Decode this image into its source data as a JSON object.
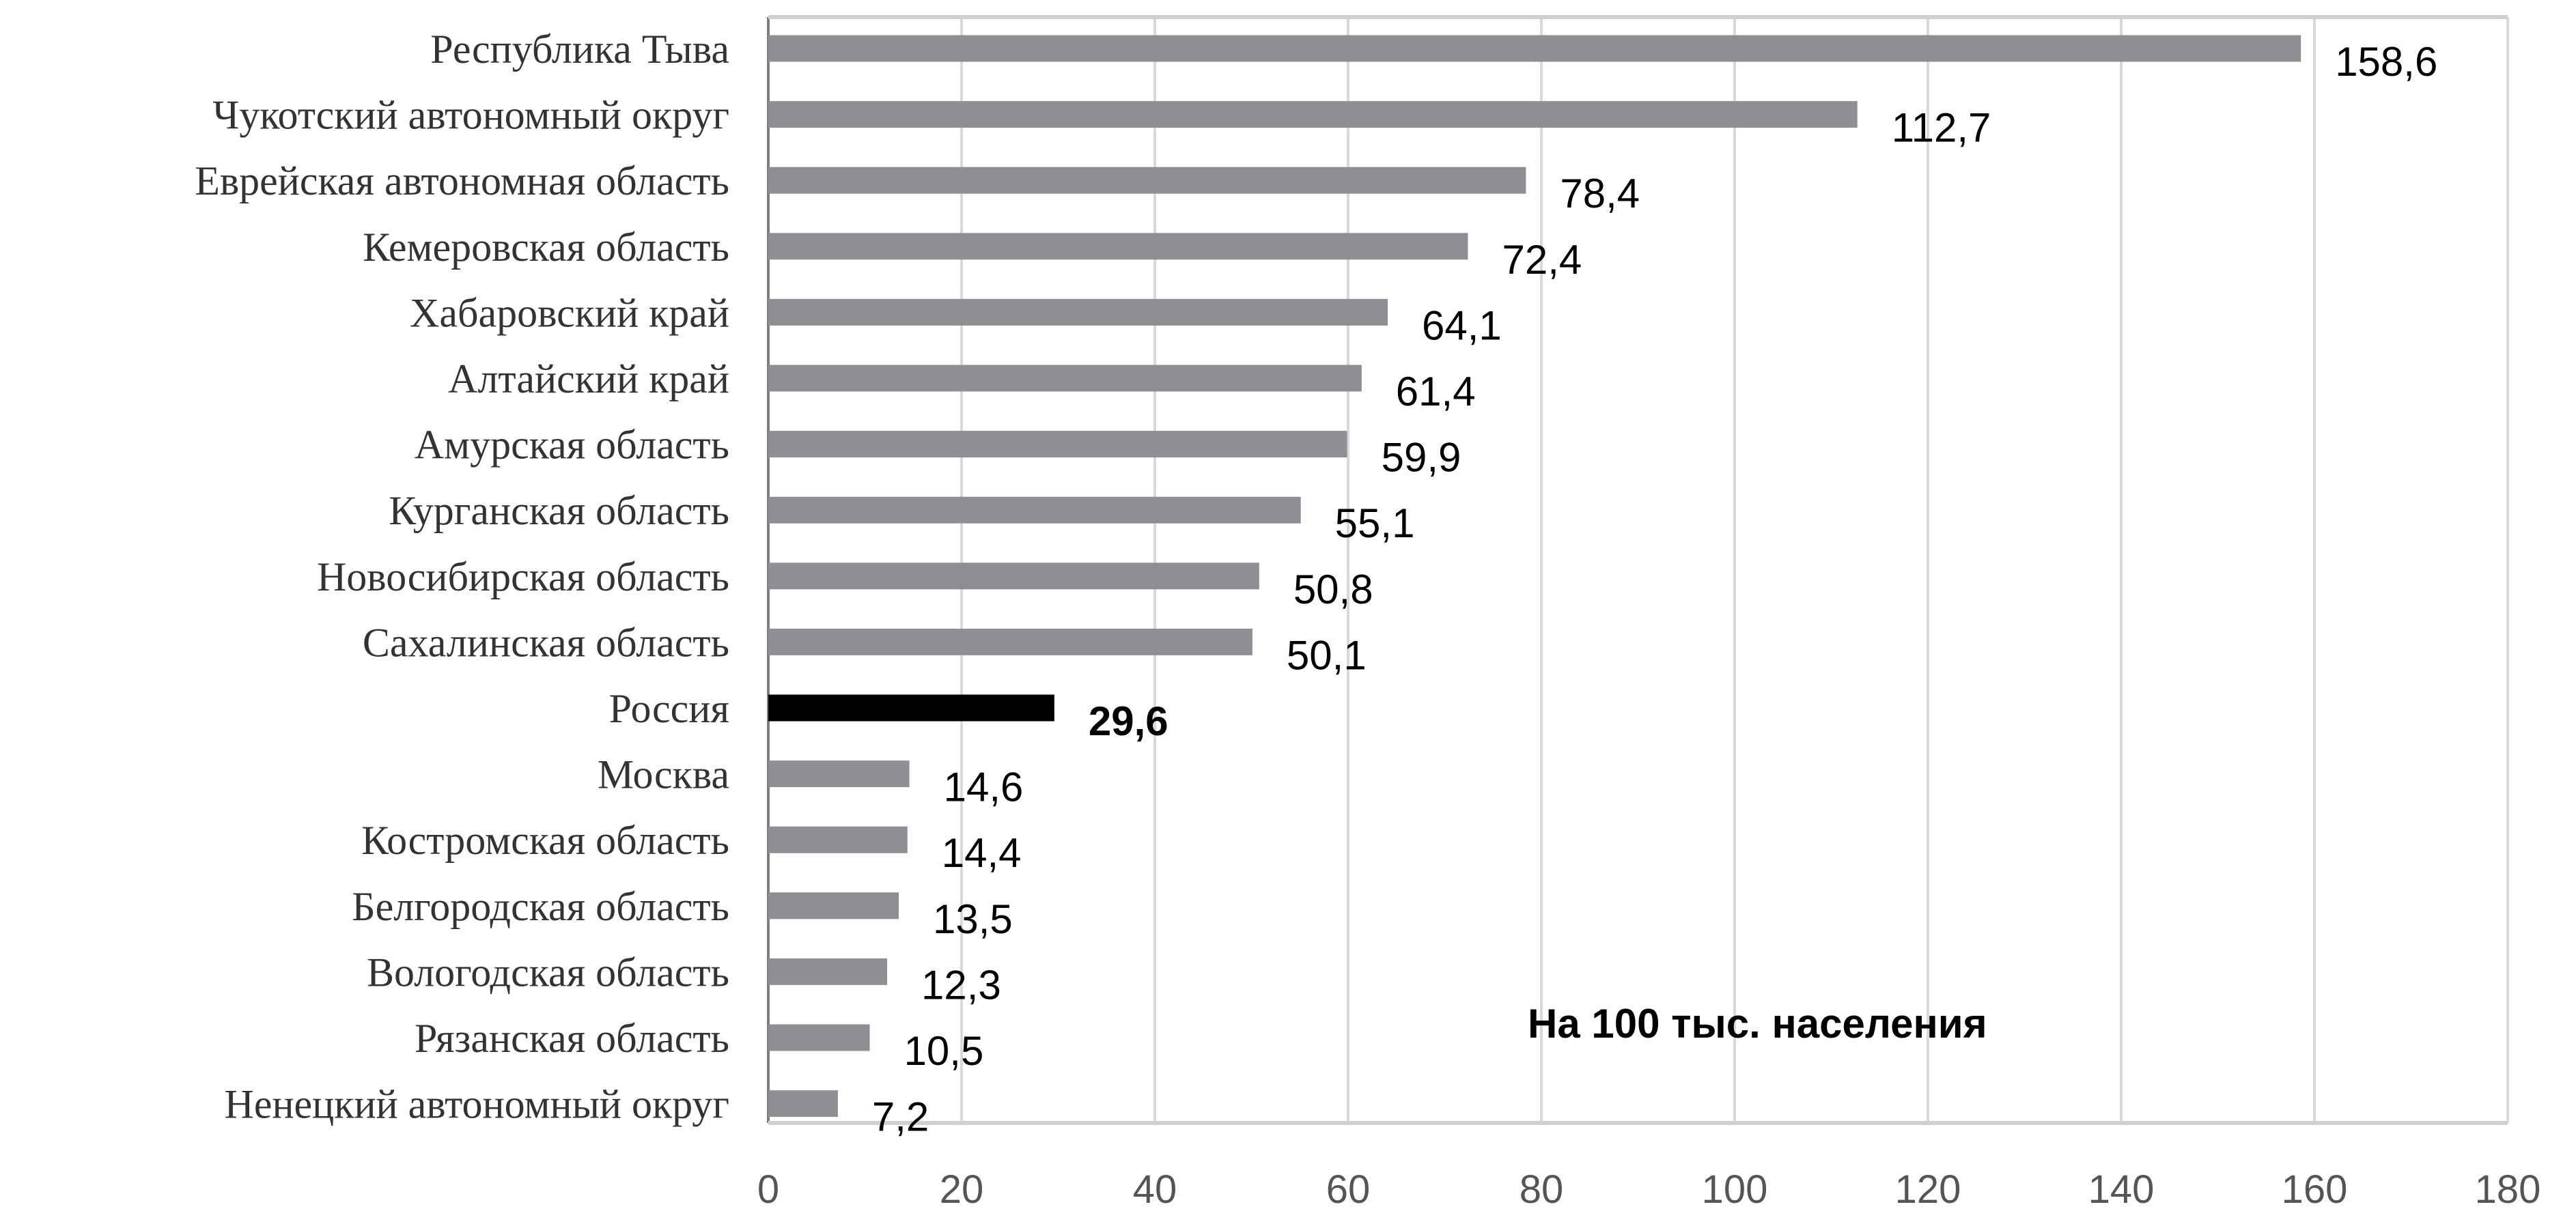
{
  "chart_data": {
    "type": "bar",
    "orientation": "horizontal",
    "categories": [
      "Республика Тыва",
      "Чукотский автономный округ",
      "Еврейская автономная область",
      "Кемеровская область",
      "Хабаровский край",
      "Алтайский край",
      "Амурская область",
      "Курганская область",
      "Новосибирская область",
      "Сахалинская область",
      "Россия",
      "Москва",
      "Костромская область",
      "Белгородская область",
      "Вологодская область",
      "Рязанская область",
      "Ненецкий автономный округ"
    ],
    "values": [
      158.6,
      112.7,
      78.4,
      72.4,
      64.1,
      61.4,
      59.9,
      55.1,
      50.8,
      50.1,
      29.6,
      14.6,
      14.4,
      13.5,
      12.3,
      10.5,
      7.2
    ],
    "value_labels": [
      "158,6",
      "112,7",
      "78,4",
      "72,4",
      "64,1",
      "61,4",
      "59,9",
      "55,1",
      "50,8",
      "50,1",
      "29,6",
      "14,6",
      "14,4",
      "13,5",
      "12,3",
      "10,5",
      "7,2"
    ],
    "highlight_category": "Россия",
    "xlim": [
      0,
      180
    ],
    "xticks": [
      0,
      20,
      40,
      60,
      80,
      100,
      120,
      140,
      160,
      180
    ],
    "grid": true,
    "annotation": "На 100 тыс. населения",
    "colors": {
      "bar": "#8e8f92",
      "highlight": "#000000",
      "grid": "#d9d9d9"
    }
  }
}
